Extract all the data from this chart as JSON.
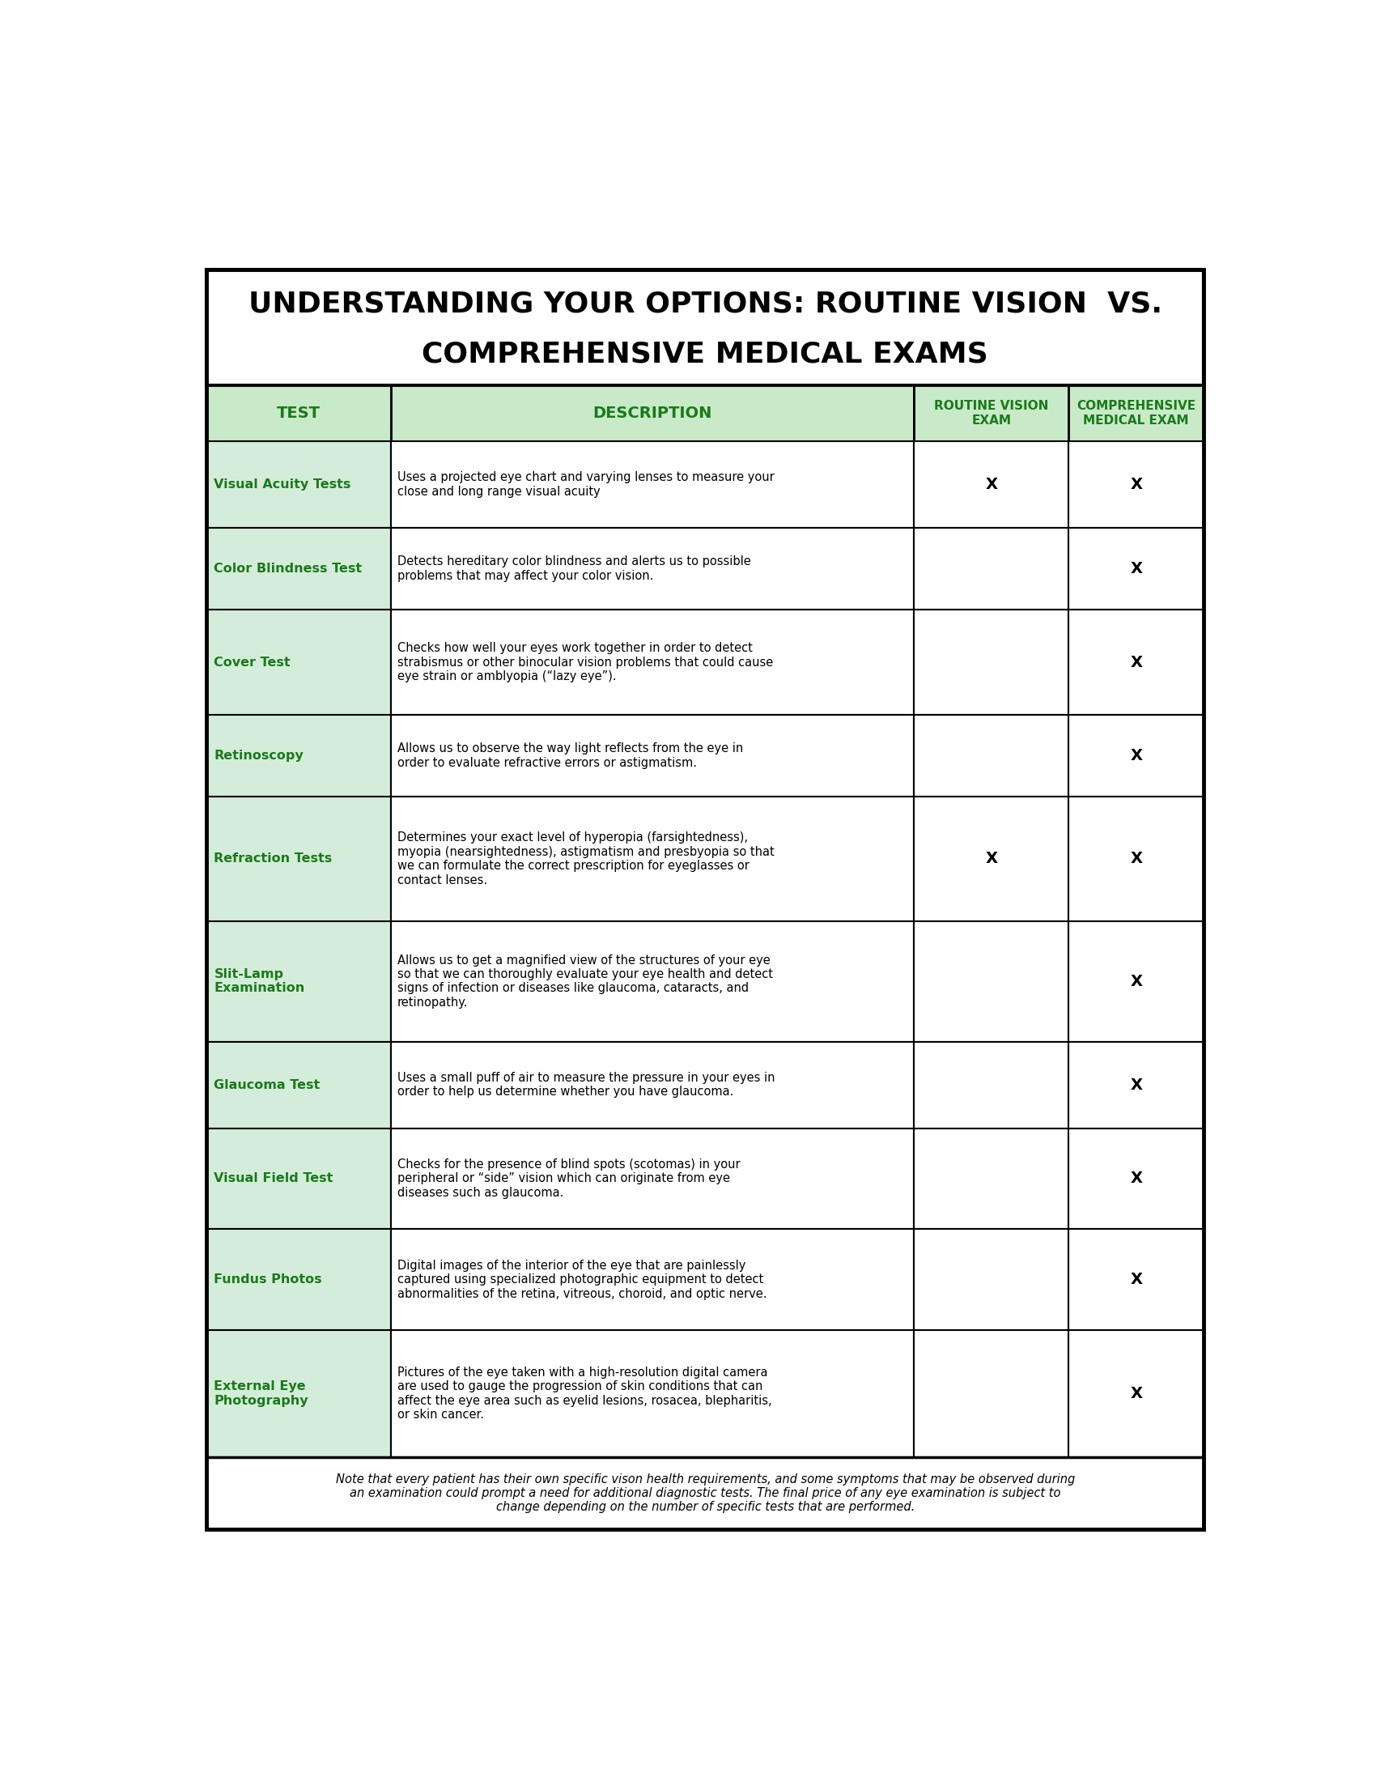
{
  "title_line1": "UNDERSTANDING YOUR OPTIONS: ROUTINE VISION  VS.",
  "title_line2": "COMPREHENSIVE MEDICAL EXAMS",
  "header_bg": "#c8eac8",
  "row_bg": "#d4edda",
  "white_bg": "#ffffff",
  "border_color": "#000000",
  "green_text": "#1a7a1a",
  "black_text": "#000000",
  "col_headers": [
    "TEST",
    "DESCRIPTION",
    "ROUTINE VISION\nEXAM",
    "COMPREHENSIVE\nMEDICAL EXAM"
  ],
  "rows": [
    {
      "test": "Visual Acuity Tests",
      "description": "Uses a projected eye chart and varying lenses to measure your\nclose and long range visual acuity",
      "routine": "X",
      "comprehensive": "X"
    },
    {
      "test": "Color Blindness Test",
      "description": "Detects hereditary color blindness and alerts us to possible\nproblems that may affect your color vision.",
      "routine": "",
      "comprehensive": "X"
    },
    {
      "test": "Cover Test",
      "description": "Checks how well your eyes work together in order to detect\nstrabismus or other binocular vision problems that could cause\neye strain or amblyopia (“lazy eye”).",
      "routine": "",
      "comprehensive": "X"
    },
    {
      "test": "Retinoscopy",
      "description": "Allows us to observe the way light reflects from the eye in\norder to evaluate refractive errors or astigmatism.",
      "routine": "",
      "comprehensive": "X"
    },
    {
      "test": "Refraction Tests",
      "description": "Determines your exact level of hyperopia (farsightedness),\nmyopia (nearsightedness), astigmatism and presbyopia so that\nwe can formulate the correct prescription for eyeglasses or\ncontact lenses.",
      "routine": "X",
      "comprehensive": "X"
    },
    {
      "test": "Slit-Lamp\nExamination",
      "description": "Allows us to get a magnified view of the structures of your eye\nso that we can thoroughly evaluate your eye health and detect\nsigns of infection or diseases like glaucoma, cataracts, and\nretinopathy.",
      "routine": "",
      "comprehensive": "X"
    },
    {
      "test": "Glaucoma Test",
      "description": "Uses a small puff of air to measure the pressure in your eyes in\norder to help us determine whether you have glaucoma.",
      "routine": "",
      "comprehensive": "X"
    },
    {
      "test": "Visual Field Test",
      "description": "Checks for the presence of blind spots (scotomas) in your\nperipheral or “side” vision which can originate from eye\ndiseases such as glaucoma.",
      "routine": "",
      "comprehensive": "X"
    },
    {
      "test": "Fundus Photos",
      "description": "Digital images of the interior of the eye that are painlessly\ncaptured using specialized photographic equipment to detect\nabnormalities of the retina, vitreous, choroid, and optic nerve.",
      "routine": "",
      "comprehensive": "X"
    },
    {
      "test": "External Eye\nPhotography",
      "description": "Pictures of the eye taken with a high-resolution digital camera\nare used to gauge the progression of skin conditions that can\naffect the eye area such as eyelid lesions, rosacea, blepharitis,\nor skin cancer.",
      "routine": "",
      "comprehensive": "X"
    }
  ],
  "footnote": "Note that every patient has their own specific vison health requirements, and some symptoms that may be observed during\nan examination could prompt a need for additional diagnostic tests. The final price of any eye examination is subject to\nchange depending on the number of specific tests that are performed."
}
